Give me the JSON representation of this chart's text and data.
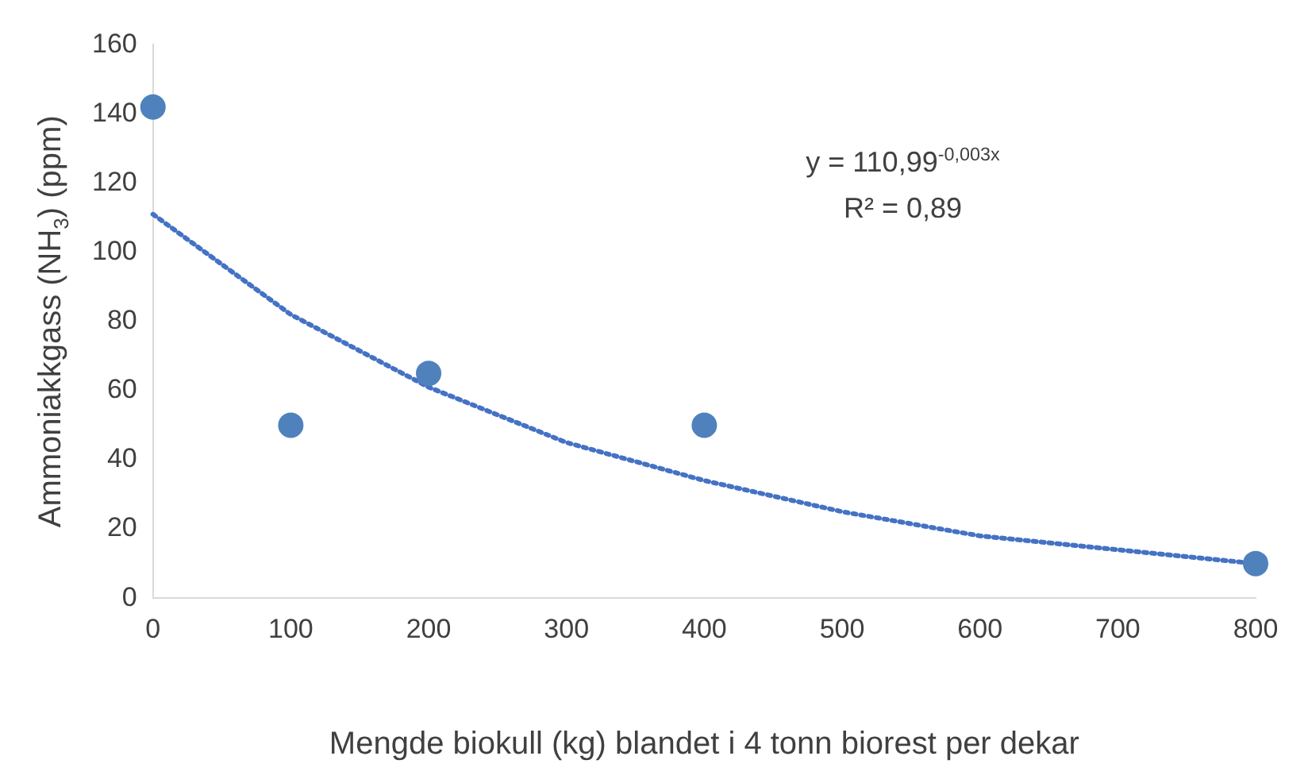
{
  "chart_data": {
    "type": "scatter",
    "xlabel": "Mengde biokull (kg) blandet i 4 tonn biorest per dekar",
    "ylabel": "Ammoniakkgass (NH$_{3}$) (ppm)",
    "annotations": [
      "y = 110,99$^{-0,003x}$",
      "R² = 0,89"
    ],
    "xlim": [
      0,
      800
    ],
    "xticks": [
      0,
      100,
      200,
      300,
      400,
      500,
      600,
      700,
      800
    ],
    "ylim": [
      0,
      160
    ],
    "yticks": [
      0,
      20,
      40,
      60,
      80,
      100,
      120,
      140,
      160
    ],
    "grid": false,
    "legend": false,
    "series": [
      {
        "type": "scatter",
        "color": "#4f81bd",
        "marker": "circle",
        "x": [
          0,
          100,
          200,
          400,
          800
        ],
        "values": [
          142,
          50,
          65,
          50,
          10
        ]
      },
      {
        "type": "line",
        "color": "#4472c4",
        "marker": "none",
        "line_style": "dotted",
        "x": [
          0,
          100,
          200,
          300,
          400,
          500,
          600,
          700,
          800
        ],
        "values": [
          111,
          82,
          61,
          45,
          34,
          25,
          18,
          14,
          10
        ]
      }
    ]
  }
}
